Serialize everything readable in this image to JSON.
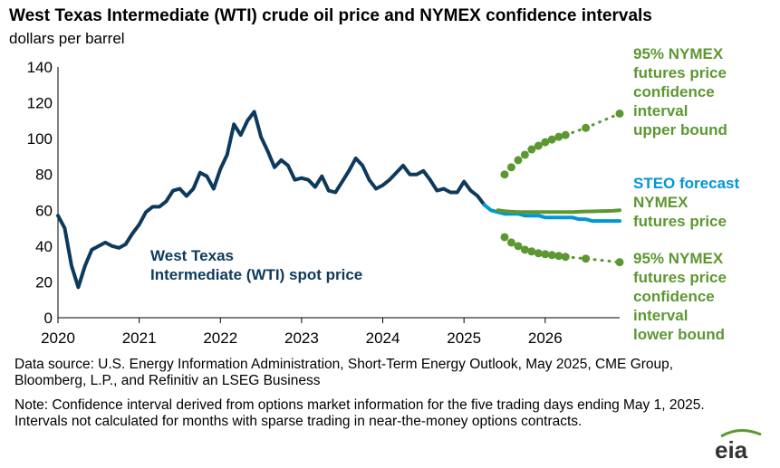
{
  "chart_data": {
    "type": "line",
    "title": "West Texas Intermediate (WTI) crude oil price and NYMEX confidence intervals",
    "subtitle": "dollars per barrel",
    "ylim": [
      0,
      140
    ],
    "yticks": [
      0,
      20,
      40,
      60,
      80,
      100,
      120,
      140
    ],
    "xlim": [
      2020.0,
      2026.917
    ],
    "xticks": [
      "2020",
      "2021",
      "2022",
      "2023",
      "2024",
      "2025",
      "2026"
    ],
    "grid": false,
    "series": [
      {
        "name": "West Texas Intermediate (WTI) spot price",
        "color": "#0d3a5c",
        "x": [
          2020.0,
          2020.083,
          2020.167,
          2020.25,
          2020.333,
          2020.417,
          2020.5,
          2020.583,
          2020.667,
          2020.75,
          2020.833,
          2020.917,
          2021.0,
          2021.083,
          2021.167,
          2021.25,
          2021.333,
          2021.417,
          2021.5,
          2021.583,
          2021.667,
          2021.75,
          2021.833,
          2021.917,
          2022.0,
          2022.083,
          2022.167,
          2022.25,
          2022.333,
          2022.417,
          2022.5,
          2022.583,
          2022.667,
          2022.75,
          2022.833,
          2022.917,
          2023.0,
          2023.083,
          2023.167,
          2023.25,
          2023.333,
          2023.417,
          2023.5,
          2023.583,
          2023.667,
          2023.75,
          2023.833,
          2023.917,
          2024.0,
          2024.083,
          2024.167,
          2024.25,
          2024.333,
          2024.417,
          2024.5,
          2024.583,
          2024.667,
          2024.75,
          2024.833,
          2024.917,
          2025.0,
          2025.083,
          2025.167,
          2025.25
        ],
        "values": [
          57,
          50,
          29,
          17,
          29,
          38,
          40,
          42,
          40,
          39,
          41,
          47,
          52,
          59,
          62,
          62,
          65,
          71,
          72,
          68,
          72,
          81,
          79,
          72,
          83,
          91,
          108,
          102,
          110,
          115,
          101,
          93,
          84,
          88,
          85,
          77,
          78,
          77,
          73,
          79,
          71,
          70,
          76,
          82,
          89,
          85,
          77,
          72,
          74,
          77,
          81,
          85,
          80,
          80,
          82,
          77,
          71,
          72,
          70,
          70,
          76,
          71,
          68,
          63
        ]
      },
      {
        "name": "STEO forecast",
        "color": "#0096d7",
        "x": [
          2025.25,
          2025.333,
          2025.417,
          2025.5,
          2025.583,
          2025.667,
          2025.75,
          2025.833,
          2025.917,
          2026.0,
          2026.083,
          2026.167,
          2026.25,
          2026.333,
          2026.417,
          2026.5,
          2026.583,
          2026.667,
          2026.75,
          2026.833,
          2026.917
        ],
        "values": [
          63,
          60,
          59,
          58,
          58,
          58,
          57,
          57,
          57,
          56,
          56,
          56,
          56,
          56,
          55,
          55,
          54,
          54,
          54,
          54,
          54
        ]
      },
      {
        "name": "NYMEX futures price",
        "color": "#5d9732",
        "x": [
          2025.417,
          2025.5,
          2025.583,
          2025.667,
          2025.75,
          2025.833,
          2025.917,
          2026.0,
          2026.083,
          2026.167,
          2026.25,
          2026.333,
          2026.417,
          2026.5,
          2026.583,
          2026.667,
          2026.75,
          2026.833,
          2026.917
        ],
        "values": [
          60,
          59.5,
          59.2,
          59,
          59,
          59,
          59,
          59,
          59,
          59,
          59,
          59,
          59.2,
          59.3,
          59.4,
          59.5,
          59.6,
          59.7,
          60
        ]
      },
      {
        "name": "95% NYMEX futures price confidence interval upper bound",
        "color": "#5d9732",
        "x": [
          2025.5,
          2025.583,
          2025.667,
          2025.75,
          2025.833,
          2025.917,
          2026.0,
          2026.083,
          2026.167,
          2026.25,
          2026.5,
          2026.917
        ],
        "values": [
          80,
          84,
          88,
          91,
          94,
          96,
          98,
          99.5,
          101,
          102,
          106,
          114
        ],
        "dotted_segments": [
          [
            2026.25,
            2026.5
          ],
          [
            2026.5,
            2026.917
          ]
        ]
      },
      {
        "name": "95% NYMEX futures price confidence interval lower bound",
        "color": "#5d9732",
        "x": [
          2025.5,
          2025.583,
          2025.667,
          2025.75,
          2025.833,
          2025.917,
          2026.0,
          2026.083,
          2026.167,
          2026.25,
          2026.5,
          2026.917
        ],
        "values": [
          45,
          42,
          40,
          38,
          37,
          36,
          35.5,
          35,
          34.5,
          34,
          33,
          31
        ],
        "dotted_segments": [
          [
            2026.25,
            2026.5
          ],
          [
            2026.5,
            2026.917
          ]
        ]
      }
    ],
    "annotations": {
      "upper": [
        "95% NYMEX",
        "futures price",
        "confidence",
        "interval",
        "upper bound"
      ],
      "steo_blue": "STEO forecast",
      "steo_green": [
        "NYMEX",
        "futures price"
      ],
      "lower": [
        "95% NYMEX",
        "futures price",
        "confidence",
        "interval",
        "lower bound"
      ],
      "wti": [
        "West Texas",
        "Intermediate (WTI) spot price"
      ]
    }
  },
  "footer": {
    "source": "Data source: U.S. Energy Information Administration, Short-Term Energy Outlook, May 2025, CME Group, Bloomberg, L.P., and Refinitiv an LSEG Business",
    "note": "Note: Confidence interval derived from options market information for the five trading days ending May 1, 2025. Intervals not calculated for months with sparse trading in near-the-money options contracts."
  },
  "logo": {
    "text": "eia",
    "color": "#333333",
    "accent": "#5d9732"
  }
}
